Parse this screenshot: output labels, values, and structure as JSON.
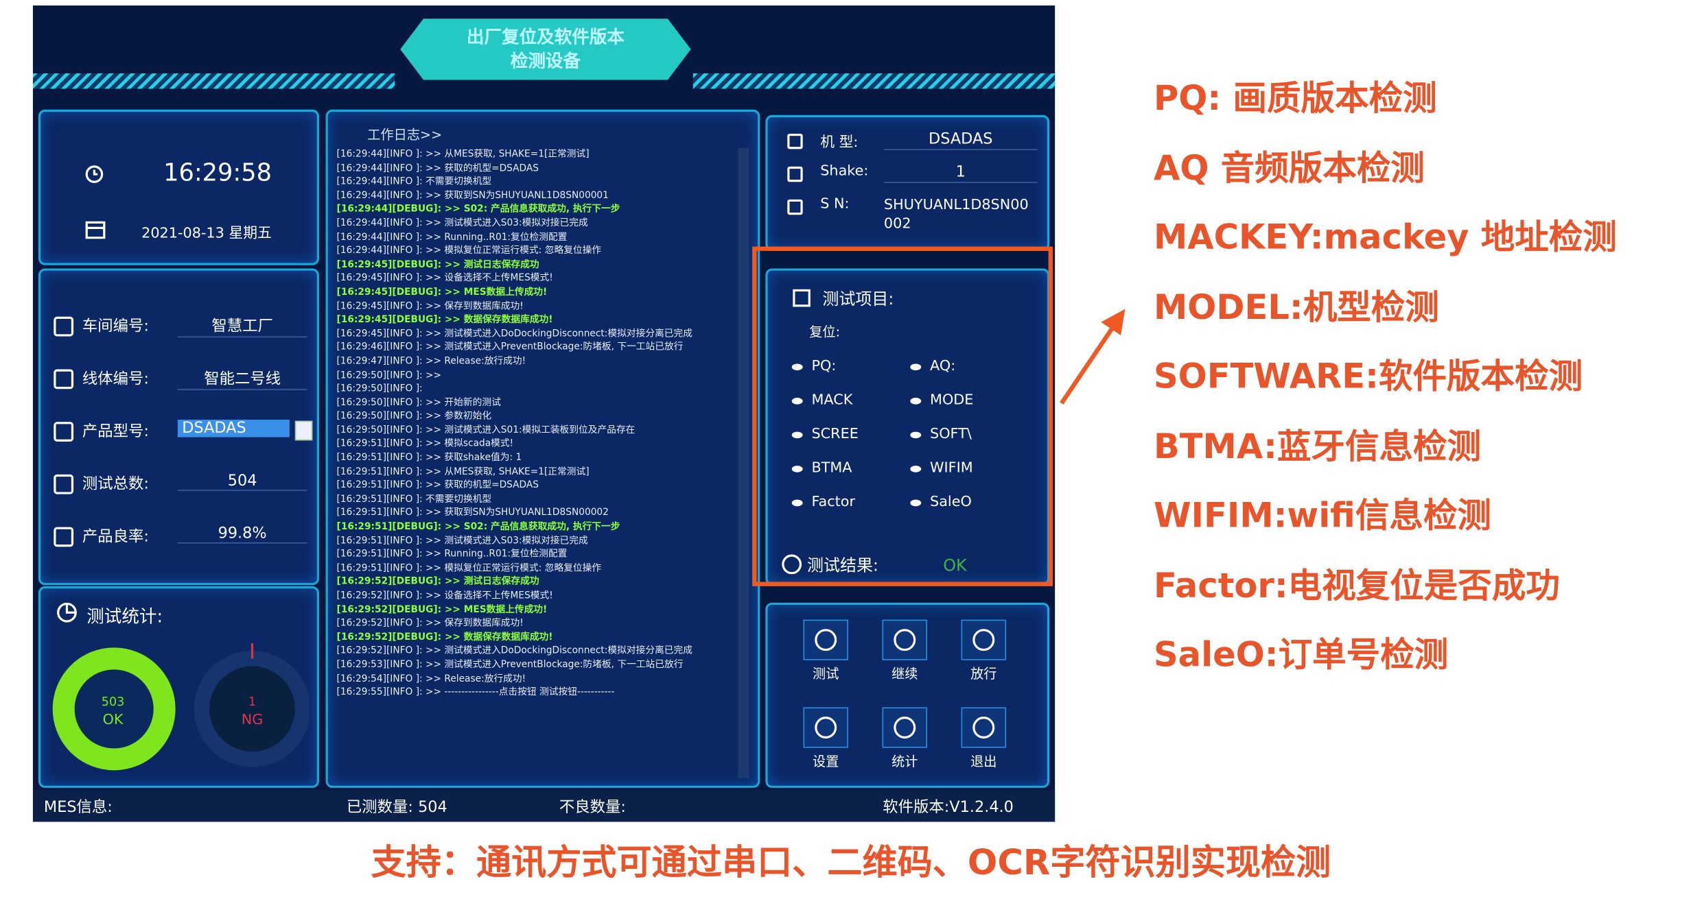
{
  "header": {
    "title_line1": "出厂复位及软件版本",
    "title_line2": "检测设备"
  },
  "clock": {
    "time": "16:29:58",
    "date": "2021-08-13 星期五"
  },
  "info": {
    "rows": [
      {
        "label": "车间编号:",
        "value": "智慧工厂"
      },
      {
        "label": "线体编号:",
        "value": "智能二号线"
      },
      {
        "label": "产品型号:",
        "value": "DSADAS"
      },
      {
        "label": "测试总数:",
        "value": "504"
      },
      {
        "label": "产品良率:",
        "value": "99.8%"
      }
    ]
  },
  "stats": {
    "title": "测试统计:",
    "ok_count": "503",
    "ok_label": "OK",
    "ng_count": "1",
    "ng_label": "NG"
  },
  "log": {
    "title": "工作日志>>",
    "lines": [
      "[16:29:44][INFO ]: >> 从MES获取, SHAKE=1[正常测试]",
      "[16:29:44][INFO ]: >> 获取的机型=DSADAS",
      "[16:29:44][INFO ]: 不需要切换机型",
      "[16:29:44][INFO ]: >> 获取到SN为SHUYUANL1D8SN00001",
      "[16:29:44][DEBUG]: >> S02: 产品信息获取成功, 执行下一步",
      "[16:29:44][INFO ]: >> 测试模式进入S03:模拟对接已完成",
      "[16:29:44][INFO ]: >> Running..R01:复位检测配置",
      "[16:29:44][INFO ]: >> 模拟复位正常运行模式: 忽略复位操作",
      "[16:29:45][DEBUG]: >> 测试日志保存成功",
      "[16:29:45][INFO ]: >> 设备选择不上传MES模式!",
      "[16:29:45][DEBUG]: >> MES数据上传成功!",
      "[16:29:45][INFO ]: >> 保存到数据库成功!",
      "[16:29:45][DEBUG]: >> 数据保存数据库成功!",
      "[16:29:45][INFO ]: >> 测试模式进入DoDockingDisconnect:模拟对接分离已完成",
      "[16:29:46][INFO ]: >> 测试模式进入PreventBlockage:防堵板, 下一工站已放行",
      "[16:29:47][INFO ]: >> Release:放行成功!",
      "[16:29:50][INFO ]: >>",
      "[16:29:50][INFO ]:",
      "[16:29:50][INFO ]: >> 开始新的测试",
      "[16:29:50][INFO ]: >> 参数初始化",
      "[16:29:50][INFO ]: >> 测试模式进入S01:模拟工装板到位及产品存在",
      "[16:29:51][INFO ]: >> 模拟scada模式!",
      "[16:29:51][INFO ]: >> 获取shake值为: 1",
      "[16:29:51][INFO ]: >> 从MES获取, SHAKE=1[正常测试]",
      "[16:29:51][INFO ]: >> 获取的机型=DSADAS",
      "[16:29:51][INFO ]: 不需要切换机型",
      "[16:29:51][INFO ]: >> 获取到SN为SHUYUANL1D8SN00002",
      "[16:29:51][DEBUG]: >> S02: 产品信息获取成功, 执行下一步",
      "[16:29:51][INFO ]: >> 测试模式进入S03:模拟对接已完成",
      "[16:29:51][INFO ]: >> Running..R01:复位检测配置",
      "[16:29:51][INFO ]: >> 模拟复位正常运行模式: 忽略复位操作",
      "[16:29:52][DEBUG]: >> 测试日志保存成功",
      "[16:29:52][INFO ]: >> 设备选择不上传MES模式!",
      "[16:29:52][DEBUG]: >> MES数据上传成功!",
      "[16:29:52][INFO ]: >> 保存到数据库成功!",
      "[16:29:52][DEBUG]: >> 数据保存数据库成功!",
      "[16:29:52][INFO ]: >> 测试模式进入DoDockingDisconnect:模拟对接分离已完成",
      "[16:29:53][INFO ]: >> 测试模式进入PreventBlockage:防堵板, 下一工站已放行",
      "[16:29:54][INFO ]: >> Release:放行成功!",
      "[16:29:55][INFO ]: >> ----------------点击按钮 测试按钮-----------"
    ]
  },
  "device": {
    "rows": [
      {
        "label": "机 型:",
        "value": "DSADAS"
      },
      {
        "label": "Shake:",
        "value": "1"
      },
      {
        "label": "S N:",
        "value": "SHUYUANL1D8SN00002"
      }
    ]
  },
  "test_items": {
    "title": "测试项目:",
    "subtitle": "复位:",
    "items": [
      "PQ:",
      "AQ:",
      "MACK",
      "MODE",
      "SCREE",
      "SOFT\\",
      "BTMA",
      "WIFIM",
      "Factor",
      "SaleO"
    ],
    "result_label": "测试结果:",
    "result": "OK"
  },
  "buttons": [
    "测试",
    "继续",
    "放行",
    "设置",
    "统计",
    "退出"
  ],
  "status_bar": {
    "mes": "MES信息:",
    "tested": "已测数量: 504",
    "bad": "不良数量:",
    "version": "软件版本:V1.2.4.0"
  },
  "annotations": [
    "PQ: 画质版本检测",
    "AQ 音频版本检测",
    "MACKEY:mackey 地址检测",
    "MODEL:机型检测",
    "SOFTWARE:软件版本检测",
    "BTMA:蓝牙信息检测",
    "WIFIM:wifi信息检测",
    "Factor:电视复位是否成功",
    "SaleO:订单号检测"
  ],
  "caption": "支持：通讯方式可通过串口、二维码、OCR字符识别实现检测"
}
